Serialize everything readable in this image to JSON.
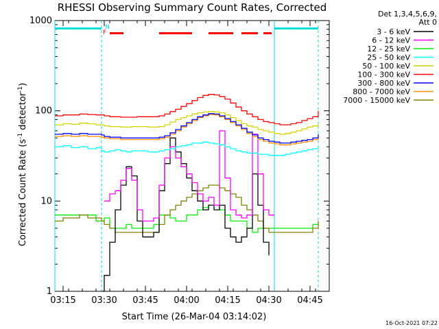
{
  "chart_data": {
    "type": "line",
    "title": "RHESSI Observing Summary Count Rates, Corrected",
    "ylabel_main": "Corrected Count Rate (s",
    "ylabel_sup1": "-1",
    "ylabel_mid": " detector",
    "ylabel_sup2": "-1",
    "ylabel_end": ")",
    "xlabel": "Start Time (26-Mar-04 03:14:02)",
    "timestamp": "16-Oct-2021 07:22",
    "y_scale": "log",
    "ylim": [
      1,
      1000
    ],
    "xlim": [
      0,
      100
    ],
    "xticks": [
      "03:15",
      "03:30",
      "03:45",
      "04:00",
      "04:15",
      "04:30",
      "04:45"
    ],
    "xtick_minutes": [
      3.0,
      18.0,
      33.0,
      48.0,
      63.0,
      78.0,
      93.0
    ],
    "xlim_minutes": [
      0,
      100
    ],
    "yticks": [
      {
        "value": 1,
        "label": "1"
      },
      {
        "value": 10,
        "label": "10"
      },
      {
        "value": 100,
        "label": "100"
      },
      {
        "value": 1000,
        "label": "1000"
      }
    ],
    "legend_header": [
      "Det 1,3,4,5,6,9,",
      "Att 0"
    ],
    "flags": [
      {
        "label": "N",
        "color": "#00dddd"
      },
      {
        "label": "F",
        "color": "#ff0000"
      }
    ],
    "series": [
      {
        "name": "3 - 6 keV",
        "color": "#000000",
        "values": []
      },
      {
        "name": "6 - 12 keV",
        "color": "#ff00ff",
        "values": []
      },
      {
        "name": "12 - 25 keV",
        "color": "#00ee00",
        "values": []
      },
      {
        "name": "25 - 50 keV",
        "color": "#00ffff",
        "values": []
      },
      {
        "name": "50 - 100 keV",
        "color": "#d4d400",
        "values": []
      },
      {
        "name": "100 - 300 keV",
        "color": "#ff0000",
        "values": []
      },
      {
        "name": "300 - 800 keV",
        "color": "#0000ff",
        "values": []
      },
      {
        "name": "800 - 7000 keV",
        "color": "#ff8c00",
        "values": []
      },
      {
        "name": "7000 - 15000 keV",
        "color": "#808000",
        "values": []
      }
    ],
    "series_points": {
      "x_minutes": [
        0,
        3,
        6,
        9,
        12,
        15,
        17,
        18,
        20,
        22,
        24,
        26,
        28,
        30,
        32,
        34,
        36,
        38,
        40,
        42,
        44,
        46,
        48,
        50,
        52,
        54,
        56,
        58,
        60,
        62,
        64,
        66,
        68,
        70,
        72,
        74,
        76,
        78,
        80,
        82,
        84,
        86,
        88,
        90,
        92,
        94,
        96
      ],
      "black": [
        null,
        null,
        null,
        null,
        null,
        null,
        1,
        1.5,
        3.5,
        8,
        15,
        24,
        19,
        6,
        4,
        4,
        4.5,
        13,
        26,
        50,
        35,
        26,
        18,
        13,
        10,
        8,
        9,
        8,
        9,
        5,
        4,
        3.5,
        4,
        5,
        20,
        9,
        3.5,
        2.5,
        null,
        null,
        null,
        null,
        null,
        null,
        null,
        null,
        null
      ],
      "magenta": [
        null,
        null,
        null,
        null,
        null,
        null,
        null,
        10,
        12,
        13,
        17,
        23,
        17,
        8,
        6,
        6,
        6.5,
        15,
        30,
        40,
        30,
        24,
        20,
        16,
        12,
        10,
        11,
        9,
        60,
        18,
        8,
        7,
        6.5,
        7,
        55,
        20,
        8,
        7,
        7,
        null,
        null,
        null,
        null,
        null,
        null,
        null,
        null
      ],
      "green": [
        7,
        7,
        7,
        7,
        7,
        6,
        6,
        6.5,
        5,
        5,
        5,
        5.5,
        5,
        5,
        5,
        5,
        5.5,
        7,
        7,
        6.5,
        6,
        6,
        7,
        7,
        8,
        8.5,
        9,
        9,
        8,
        7,
        6,
        6,
        6,
        5,
        4.5,
        5,
        5,
        5,
        5,
        5,
        5,
        5,
        5,
        5,
        5,
        5.5,
        6
      ],
      "cyan": [
        40,
        41,
        39,
        40,
        38,
        39,
        36,
        35,
        36,
        37,
        36,
        35,
        36,
        36,
        36,
        35,
        35,
        36,
        37,
        38,
        40,
        41,
        42,
        44,
        44,
        45,
        44,
        43,
        42,
        40,
        38,
        36,
        35,
        34,
        34,
        33,
        33,
        32,
        32,
        32,
        33,
        34,
        35,
        36,
        37,
        38,
        40
      ],
      "yellow": [
        70,
        72,
        71,
        73,
        72,
        70,
        70,
        68,
        67,
        67,
        66,
        66,
        67,
        67,
        67,
        66,
        66,
        67,
        70,
        75,
        80,
        84,
        88,
        92,
        95,
        97,
        98,
        97,
        95,
        90,
        84,
        78,
        72,
        68,
        66,
        62,
        60,
        58,
        56,
        55,
        56,
        58,
        60,
        63,
        66,
        68,
        72
      ],
      "red": [
        88,
        90,
        90,
        92,
        91,
        90,
        90,
        88,
        86,
        86,
        85,
        85,
        85,
        86,
        86,
        86,
        86,
        88,
        92,
        98,
        104,
        112,
        120,
        130,
        140,
        148,
        152,
        150,
        144,
        135,
        122,
        110,
        100,
        92,
        86,
        80,
        76,
        74,
        72,
        70,
        70,
        72,
        74,
        78,
        82,
        86,
        100
      ],
      "blue": [
        55,
        56,
        55,
        56,
        55,
        55,
        54,
        52,
        51,
        51,
        50,
        50,
        50,
        50,
        50,
        50,
        50,
        51,
        53,
        57,
        62,
        68,
        74,
        80,
        86,
        90,
        93,
        92,
        88,
        82,
        76,
        70,
        64,
        58,
        54,
        50,
        48,
        46,
        45,
        44,
        44,
        45,
        46,
        47,
        48,
        50,
        55
      ],
      "orange": [
        52,
        53,
        52,
        53,
        52,
        52,
        51,
        50,
        49,
        49,
        48,
        48,
        48,
        48,
        48,
        48,
        48,
        49,
        51,
        55,
        60,
        66,
        72,
        78,
        84,
        88,
        91,
        90,
        86,
        80,
        74,
        68,
        62,
        56,
        52,
        48,
        46,
        44,
        43,
        42,
        42,
        43,
        44,
        45,
        46,
        48,
        52
      ],
      "olive": [
        6,
        6.5,
        6.5,
        7,
        6.5,
        6.5,
        6,
        5.5,
        5,
        4.5,
        4.5,
        4.5,
        4.5,
        4.5,
        4.5,
        4.5,
        4.5,
        5.5,
        7,
        8,
        9,
        10,
        11,
        12,
        13,
        14,
        15,
        15,
        14,
        13,
        12,
        11,
        9,
        8,
        7,
        6,
        5,
        4.5,
        4.5,
        4.5,
        4.5,
        4.5,
        4.5,
        4.5,
        4.5,
        5,
        6
      ]
    },
    "vlines_minutes_solid": [
      0,
      80
    ],
    "vlines_minutes_dashed": [
      17,
      96
    ],
    "night_bars_minutes": [
      [
        0,
        17
      ],
      [
        80,
        96
      ]
    ],
    "saa_bars_minutes": [
      [
        20,
        25
      ],
      [
        38,
        50
      ],
      [
        56,
        65
      ],
      [
        68,
        74
      ],
      [
        76,
        79
      ]
    ],
    "legend_placement": "right",
    "grid": false
  }
}
